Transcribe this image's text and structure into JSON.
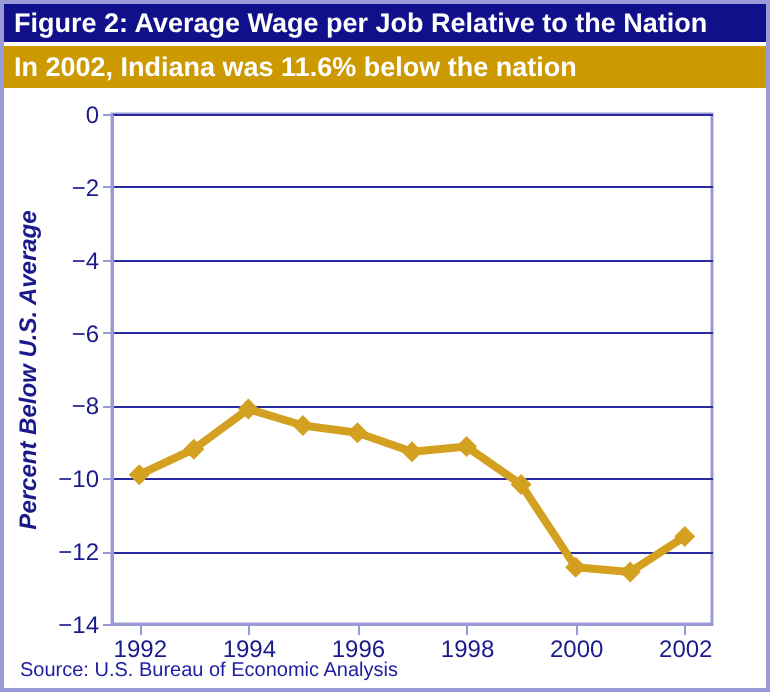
{
  "chart_data": {
    "type": "line",
    "title": "Figure 2: Average Wage per Job Relative to the Nation",
    "subtitle": "In 2002, Indiana was 11.6% below the nation",
    "ylabel": "Percent Below U.S. Average",
    "annotations": [
      "Source: U.S. Bureau of Economic Analysis"
    ],
    "x": [
      1992,
      1993,
      1994,
      1995,
      1996,
      1997,
      1998,
      1999,
      2000,
      2001,
      2002
    ],
    "series": [
      {
        "color": "#d4a020",
        "values": [
          -9.9,
          -9.2,
          -8.1,
          -8.55,
          -8.75,
          -9.27,
          -9.13,
          -10.17,
          -12.44,
          -12.57,
          -11.6
        ]
      }
    ],
    "xlim": [
      1991.5,
      2002.5
    ],
    "xticks": [
      1992,
      1994,
      1996,
      1998,
      2000,
      2002
    ],
    "ylim": [
      -14,
      0
    ],
    "yticks": [
      -14,
      -12,
      -10,
      -8,
      -6,
      -4,
      -2,
      0
    ],
    "grid": "y",
    "marker": "diamond",
    "line_style": "solid",
    "legend": false
  }
}
